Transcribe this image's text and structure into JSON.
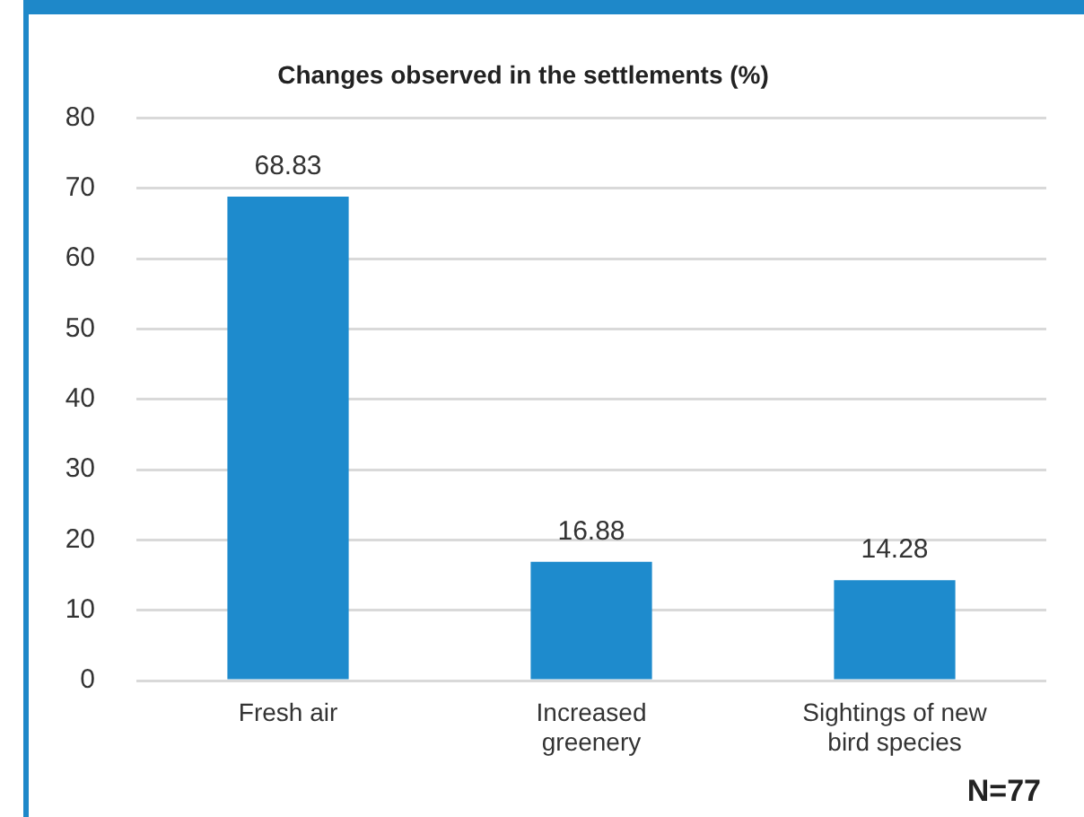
{
  "chart_data": {
    "type": "bar",
    "title": "Changes observed in the settlements (%)",
    "categories": [
      "Fresh air",
      "Increased greenery",
      "Sightings of new bird species"
    ],
    "values": [
      68.83,
      16.88,
      14.28
    ],
    "color": "#1e8bcd",
    "ylim": [
      0,
      80
    ],
    "yticks": [
      0,
      10,
      20,
      30,
      40,
      50,
      60,
      70,
      80
    ],
    "grid": "y",
    "data_labels": true,
    "annotations": [
      "N=77"
    ]
  }
}
